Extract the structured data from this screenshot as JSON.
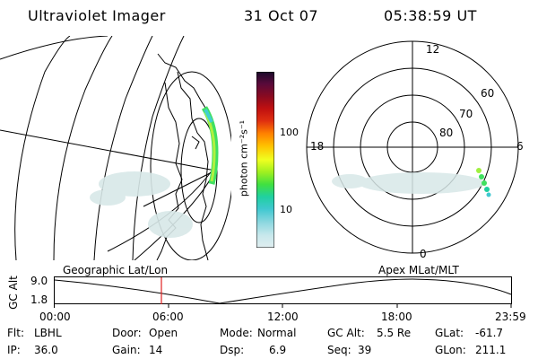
{
  "header": {
    "instrument": "Ultraviolet Imager",
    "date": "31 Oct 07",
    "time": "05:38:59 UT"
  },
  "colorbar": {
    "unit_label": "photon cm⁻²s⁻¹",
    "ticks": [
      "100",
      "10"
    ],
    "colors": [
      "#1a0a2a",
      "#5a0a3a",
      "#8a0a20",
      "#c01010",
      "#e03010",
      "#ff8000",
      "#ffc000",
      "#f0ff20",
      "#a0f020",
      "#40e040",
      "#20d0a0",
      "#40c8d0",
      "#90d8e0",
      "#c8e8ec",
      "#e0eef0"
    ]
  },
  "polar_plot": {
    "mlt_labels": [
      "12",
      "18",
      "6",
      "0"
    ],
    "lat_labels": [
      "60",
      "70",
      "80"
    ]
  },
  "timeline": {
    "left_title": "Geographic Lat/Lon",
    "right_title": "Apex MLat/MLT",
    "axis_label": "GC Alt",
    "y_labels": [
      "9.0",
      "1.8"
    ],
    "x_labels": [
      "00:00",
      "06:00",
      "12:00",
      "18:00",
      "23:59"
    ],
    "marker_color": "#e02020"
  },
  "status": {
    "filter_label": "Flt:",
    "filter_value": "LBHL",
    "ip_label": "IP:",
    "ip_value": "36.0",
    "door_label": "Door:",
    "door_value": "Open",
    "gain_label": "Gain:",
    "gain_value": "14",
    "mode_label": "Mode:",
    "mode_value": "Normal",
    "dsp_label": "Dsp:",
    "dsp_value": "6.9",
    "gcalt_label": "GC Alt:",
    "gcalt_value": "5.5 Re",
    "seq_label": "Seq:",
    "seq_value": "39",
    "glat_label": "GLat:",
    "glat_value": "-61.7",
    "glon_label": "GLon:",
    "glon_value": "211.1"
  }
}
